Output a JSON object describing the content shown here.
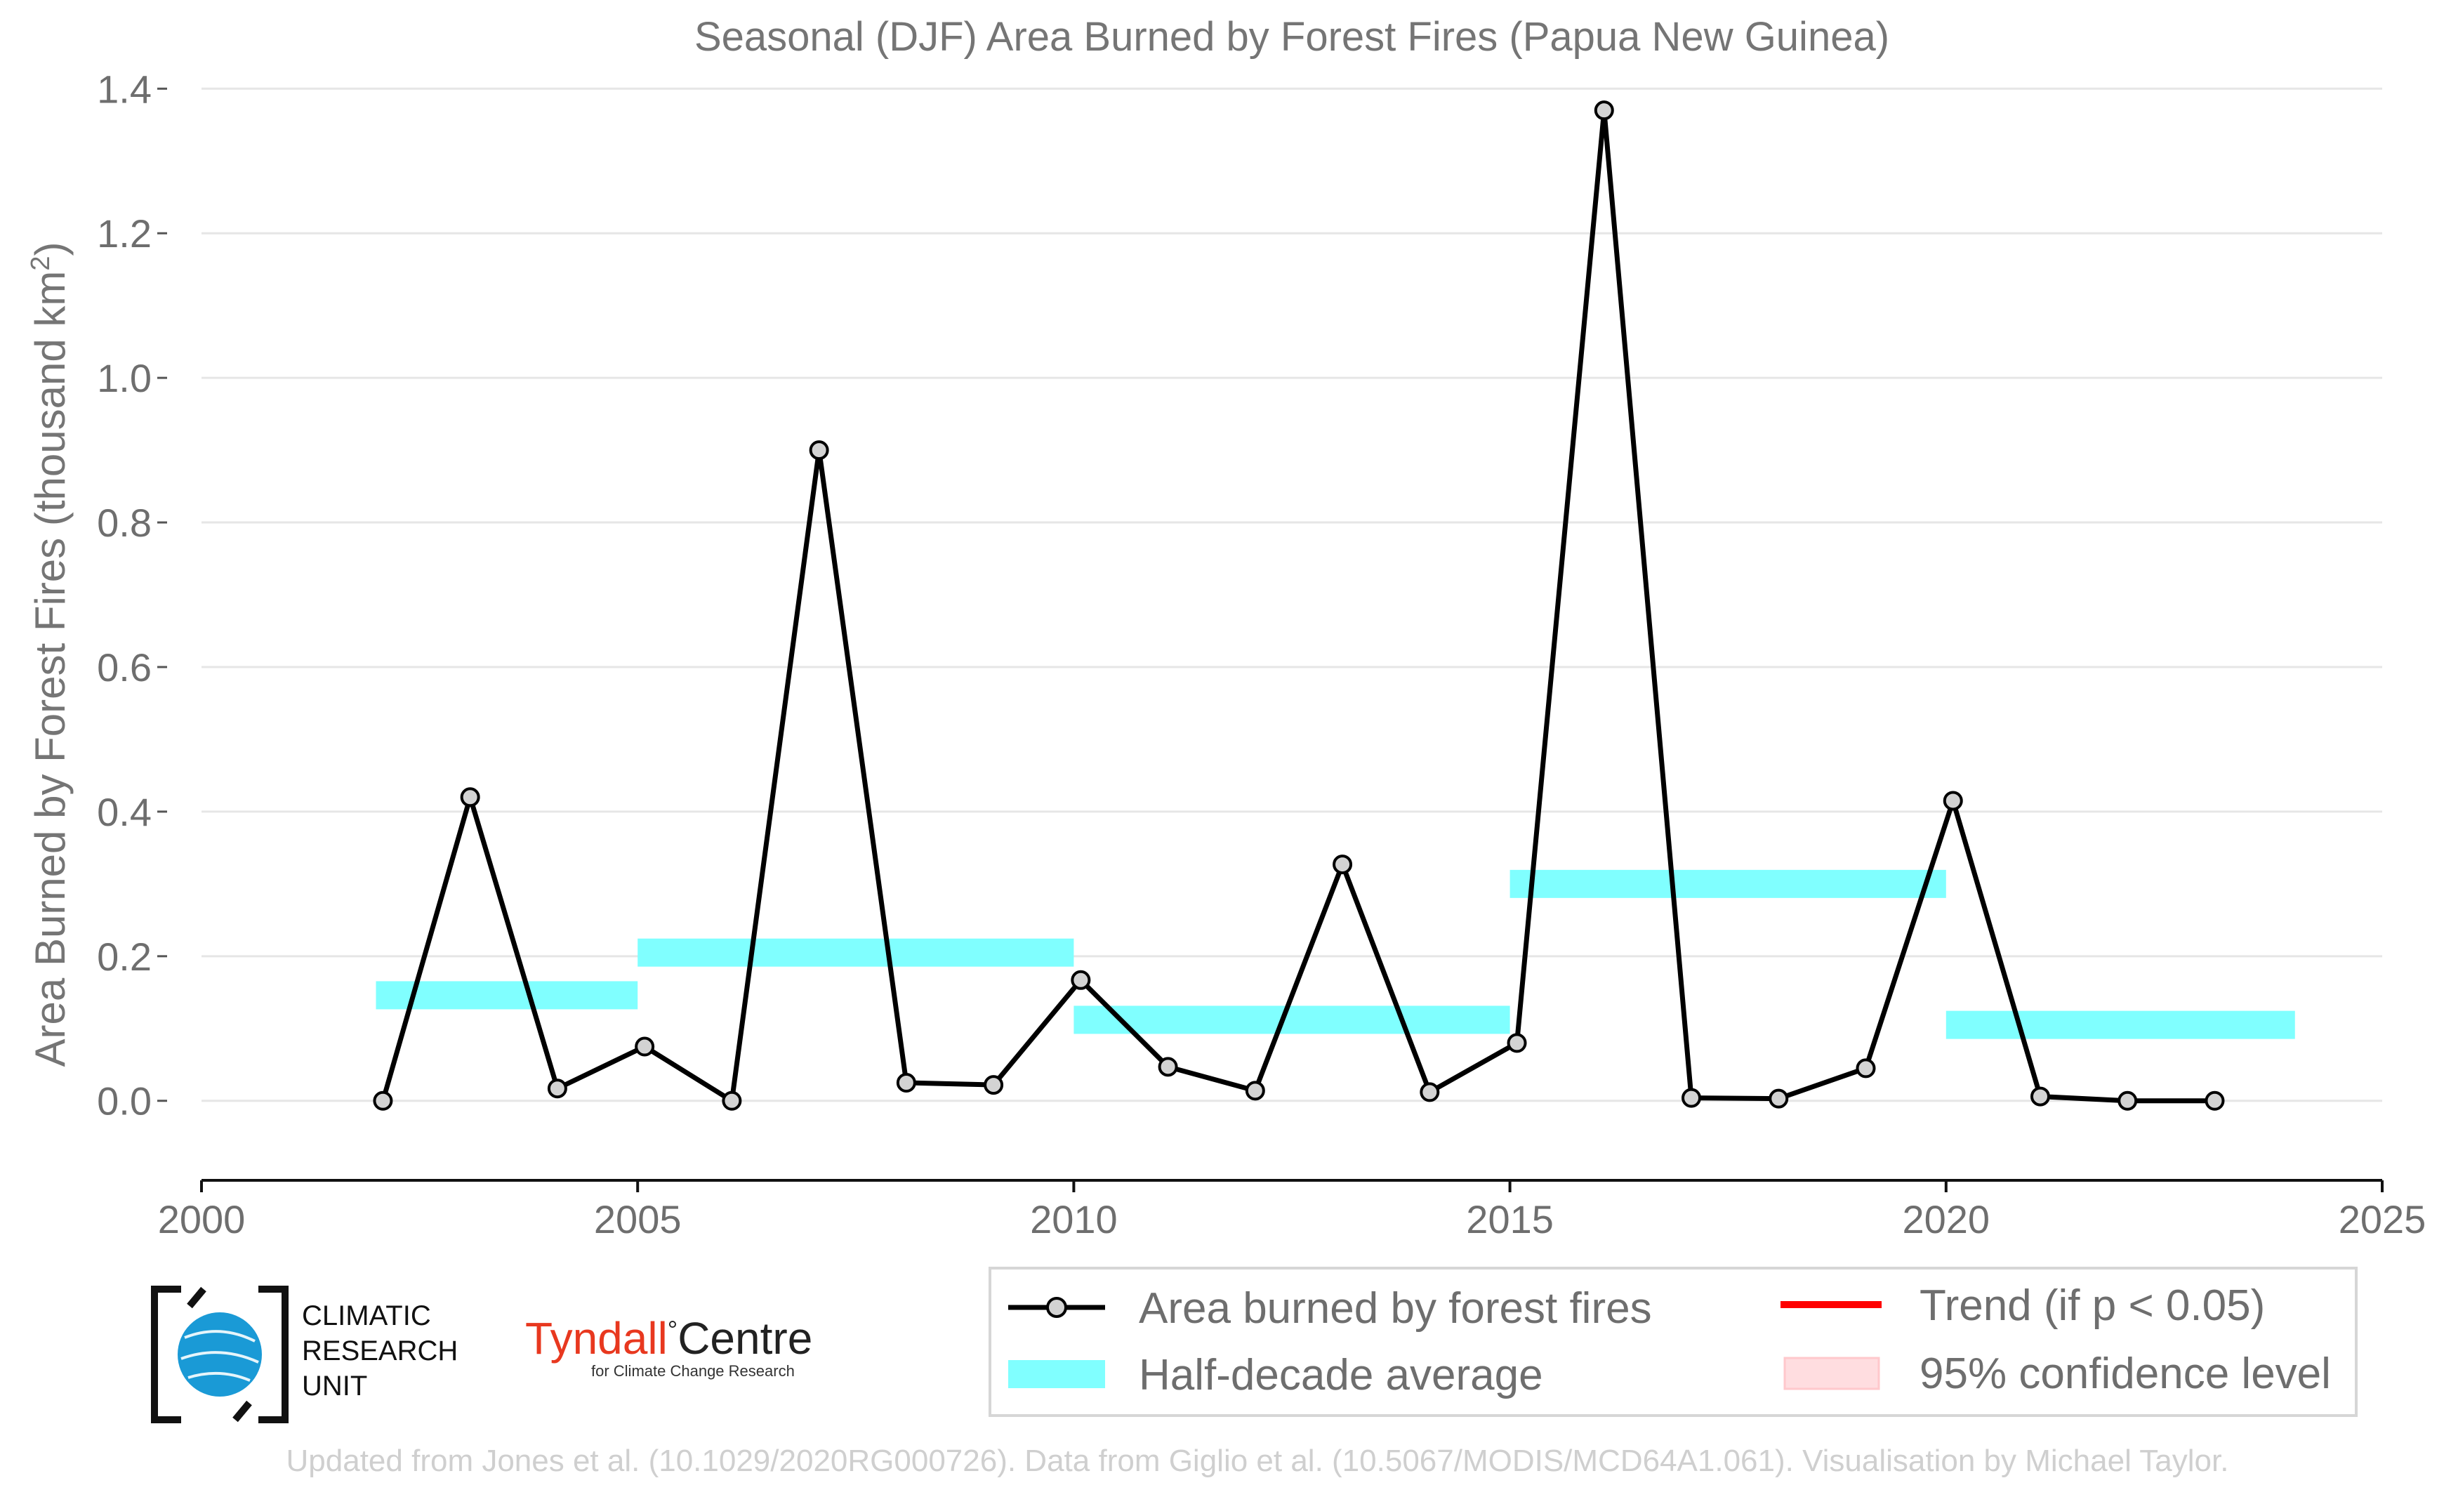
{
  "chart_data": {
    "type": "line",
    "title": "Seasonal (DJF) Area Burned by Forest Fires (Papua New Guinea)",
    "ylabel": "Area Burned by Forest Fires (thousand km",
    "ylabel_sup": "2",
    "ylabel_end": ")",
    "xlim": [
      2000,
      2025
    ],
    "ylim": [
      -0.11,
      1.41
    ],
    "x_ticks": [
      2000,
      2005,
      2010,
      2015,
      2020,
      2025
    ],
    "y_ticks": [
      0.0,
      0.2,
      0.4,
      0.6,
      0.8,
      1.0,
      1.2,
      1.4
    ],
    "y_tick_labels": [
      "0.0",
      "0.2",
      "0.4",
      "0.6",
      "0.8",
      "1.0",
      "1.2",
      "1.4"
    ],
    "grid": "horizontal",
    "series": [
      {
        "name": "Area burned by forest fires",
        "color": "#000000",
        "marker_fill": "#d3d3d3",
        "x": [
          2002.08,
          2003.08,
          2004.08,
          2005.08,
          2006.08,
          2007.08,
          2008.08,
          2009.08,
          2010.08,
          2011.08,
          2012.08,
          2013.08,
          2014.08,
          2015.08,
          2016.08,
          2017.08,
          2018.08,
          2019.08,
          2020.08,
          2021.08,
          2022.08,
          2023.08
        ],
        "values": [
          0.0,
          0.42,
          0.017,
          0.075,
          0.0,
          0.9,
          0.025,
          0.022,
          0.167,
          0.047,
          0.014,
          0.327,
          0.012,
          0.08,
          1.37,
          0.004,
          0.003,
          0.045,
          0.415,
          0.006,
          0.0,
          0.0
        ]
      }
    ],
    "half_decade_averages": {
      "name": "Half-decade average",
      "color": "#80ffff",
      "segments": [
        {
          "x0": 2002,
          "x1": 2005,
          "value": 0.146
        },
        {
          "x0": 2005,
          "x1": 2010,
          "value": 0.205
        },
        {
          "x0": 2010,
          "x1": 2015,
          "value": 0.112
        },
        {
          "x0": 2015,
          "x1": 2020,
          "value": 0.3
        },
        {
          "x0": 2020,
          "x1": 2024,
          "value": 0.105
        }
      ]
    },
    "legend": {
      "placement": "bottom-right",
      "items": [
        {
          "label": "Area burned by forest fires",
          "kind": "line-marker",
          "color": "#000000"
        },
        {
          "label": "Half-decade average",
          "kind": "band",
          "color": "#80ffff"
        },
        {
          "label": "Trend (if p < 0.05)",
          "kind": "line",
          "color": "#ff0000"
        },
        {
          "label": "95% confidence level",
          "kind": "patch",
          "color": "#ffdde0"
        }
      ]
    }
  },
  "logos": {
    "cru": {
      "lines": [
        "CLIMATIC",
        "RESEARCH",
        "UNIT"
      ]
    },
    "tyndall": {
      "name_part1": "Tyndall",
      "degree": "°",
      "name_part2": "Centre",
      "subtitle": "for Climate Change Research",
      "name_color": "#e8381f"
    }
  },
  "credit": "Updated from Jones et al. (10.1029/2020RG000726). Data from Giglio et al. (10.5067/MODIS/MCD64A1.061). Visualisation by Michael Taylor."
}
